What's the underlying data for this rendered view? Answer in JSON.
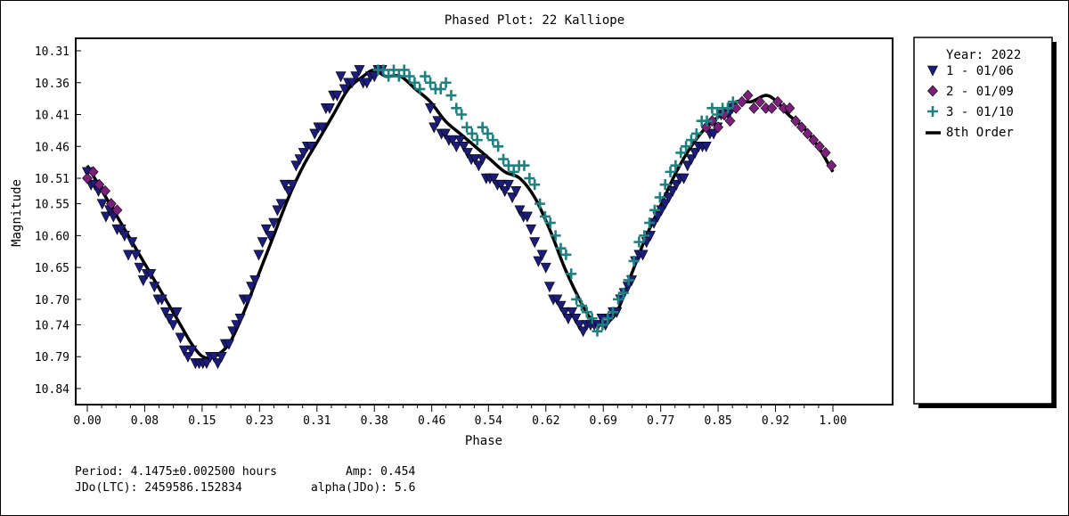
{
  "chart_data": {
    "type": "scatter",
    "title": "Phased Plot: 22 Kalliope",
    "xlabel": "Phase",
    "ylabel": "Magnitude",
    "xlim": [
      -0.01,
      1.09
    ],
    "ylim": [
      10.31,
      10.84
    ],
    "y_inverted": true,
    "grid": false,
    "xticks": [
      "0.00",
      "0.08",
      "0.15",
      "0.23",
      "0.31",
      "0.38",
      "0.46",
      "0.54",
      "0.62",
      "0.69",
      "0.77",
      "0.85",
      "0.92",
      "1.00"
    ],
    "xtick_values": [
      0.0,
      0.077,
      0.154,
      0.231,
      0.308,
      0.385,
      0.462,
      0.538,
      0.615,
      0.692,
      0.769,
      0.846,
      0.923,
      1.0
    ],
    "yticks": [
      "10.31",
      "10.36",
      "10.41",
      "10.46",
      "10.51",
      "10.55",
      "10.60",
      "10.65",
      "10.70",
      "10.74",
      "10.79",
      "10.84"
    ],
    "ytick_values": [
      10.31,
      10.36,
      10.41,
      10.46,
      10.51,
      10.55,
      10.6,
      10.65,
      10.7,
      10.74,
      10.79,
      10.84
    ],
    "legend": {
      "title": "Year: 2022",
      "placement": "right",
      "entries": [
        "1 - 01/06",
        "2 - 01/09",
        "3 - 01/10",
        "8th Order"
      ]
    },
    "series": [
      {
        "name": "1 - 01/06",
        "marker": "triangle-down",
        "color": "#1c1c7a",
        "x": [
          0.0,
          0.005,
          0.01,
          0.015,
          0.02,
          0.025,
          0.03,
          0.035,
          0.04,
          0.045,
          0.05,
          0.055,
          0.06,
          0.065,
          0.07,
          0.075,
          0.08,
          0.085,
          0.09,
          0.095,
          0.1,
          0.105,
          0.11,
          0.115,
          0.12,
          0.125,
          0.13,
          0.135,
          0.14,
          0.145,
          0.15,
          0.155,
          0.16,
          0.165,
          0.17,
          0.175,
          0.18,
          0.185,
          0.19,
          0.195,
          0.2,
          0.205,
          0.21,
          0.215,
          0.22,
          0.225,
          0.23,
          0.235,
          0.24,
          0.245,
          0.25,
          0.255,
          0.26,
          0.265,
          0.27,
          0.275,
          0.28,
          0.285,
          0.29,
          0.295,
          0.3,
          0.305,
          0.31,
          0.315,
          0.32,
          0.325,
          0.33,
          0.335,
          0.34,
          0.345,
          0.35,
          0.355,
          0.36,
          0.365,
          0.37,
          0.375,
          0.38,
          0.385,
          0.39,
          0.395,
          0.46,
          0.465,
          0.47,
          0.475,
          0.48,
          0.485,
          0.49,
          0.495,
          0.5,
          0.505,
          0.51,
          0.515,
          0.52,
          0.525,
          0.53,
          0.535,
          0.54,
          0.545,
          0.55,
          0.555,
          0.56,
          0.565,
          0.57,
          0.575,
          0.58,
          0.585,
          0.59,
          0.595,
          0.6,
          0.605,
          0.61,
          0.615,
          0.62,
          0.625,
          0.63,
          0.635,
          0.64,
          0.645,
          0.65,
          0.655,
          0.66,
          0.665,
          0.67,
          0.675,
          0.68,
          0.685,
          0.69,
          0.695,
          0.7,
          0.705,
          0.71,
          0.715,
          0.72,
          0.725,
          0.73,
          0.735,
          0.74,
          0.745,
          0.75,
          0.755,
          0.76,
          0.765,
          0.77,
          0.775,
          0.78,
          0.785,
          0.79,
          0.795,
          0.8,
          0.805,
          0.81,
          0.815,
          0.82,
          0.825,
          0.83,
          0.835,
          0.84,
          0.845,
          0.85,
          0.855,
          0.86,
          0.865
        ],
        "y": [
          10.5,
          10.52,
          10.52,
          10.53,
          10.55,
          10.57,
          10.56,
          10.57,
          10.59,
          10.59,
          10.6,
          10.63,
          10.61,
          10.63,
          10.65,
          10.67,
          10.66,
          10.66,
          10.68,
          10.7,
          10.7,
          10.72,
          10.73,
          10.74,
          10.72,
          10.76,
          10.78,
          10.79,
          10.78,
          10.8,
          10.8,
          10.8,
          10.8,
          10.79,
          10.79,
          10.8,
          10.79,
          10.77,
          10.77,
          10.75,
          10.74,
          10.73,
          10.7,
          10.7,
          10.68,
          10.67,
          10.63,
          10.61,
          10.59,
          10.6,
          10.58,
          10.56,
          10.55,
          10.52,
          10.53,
          10.52,
          10.49,
          10.48,
          10.47,
          10.46,
          10.46,
          10.44,
          10.43,
          10.43,
          10.4,
          10.4,
          10.38,
          10.38,
          10.35,
          10.37,
          10.36,
          10.36,
          10.35,
          10.34,
          10.36,
          10.36,
          10.35,
          10.35,
          10.34,
          10.34,
          10.4,
          10.43,
          10.42,
          10.44,
          10.44,
          10.45,
          10.45,
          10.46,
          10.45,
          10.46,
          10.47,
          10.48,
          10.48,
          10.49,
          10.48,
          10.51,
          10.51,
          10.51,
          10.52,
          10.52,
          10.53,
          10.52,
          10.54,
          10.53,
          10.56,
          10.57,
          10.57,
          10.59,
          10.61,
          10.64,
          10.63,
          10.65,
          10.68,
          10.7,
          10.7,
          10.71,
          10.72,
          10.73,
          10.72,
          10.73,
          10.74,
          10.75,
          10.74,
          10.74,
          10.74,
          10.74,
          10.73,
          10.74,
          10.73,
          10.72,
          10.72,
          10.7,
          10.69,
          10.68,
          10.67,
          10.64,
          10.63,
          10.63,
          10.61,
          10.6,
          10.58,
          10.57,
          10.56,
          10.55,
          10.54,
          10.53,
          10.52,
          10.51,
          10.51,
          10.49,
          10.48,
          10.47,
          10.46,
          10.46,
          10.46,
          10.44,
          10.44,
          10.43,
          10.41,
          10.41,
          10.41,
          10.4
        ]
      },
      {
        "name": "2 - 01/09",
        "marker": "diamond",
        "color": "#7a1f7a",
        "x": [
          0.0,
          0.008,
          0.016,
          0.024,
          0.032,
          0.04,
          0.83,
          0.838,
          0.846,
          0.854,
          0.862,
          0.87,
          0.878,
          0.886,
          0.894,
          0.902,
          0.91,
          0.918,
          0.926,
          0.934,
          0.942,
          0.95,
          0.958,
          0.966,
          0.974,
          0.982,
          0.99,
          0.998
        ],
        "y": [
          10.51,
          10.5,
          10.52,
          10.53,
          10.55,
          10.56,
          10.43,
          10.42,
          10.43,
          10.41,
          10.42,
          10.4,
          10.39,
          10.38,
          10.4,
          10.39,
          10.4,
          10.4,
          10.39,
          10.4,
          10.4,
          10.42,
          10.43,
          10.44,
          10.45,
          10.46,
          10.47,
          10.49
        ]
      },
      {
        "name": "3 - 01/10",
        "marker": "plus",
        "color": "#1f8080",
        "x": [
          0.39,
          0.397,
          0.404,
          0.411,
          0.418,
          0.425,
          0.432,
          0.439,
          0.446,
          0.453,
          0.46,
          0.467,
          0.474,
          0.481,
          0.488,
          0.495,
          0.502,
          0.509,
          0.516,
          0.523,
          0.53,
          0.537,
          0.544,
          0.551,
          0.558,
          0.565,
          0.572,
          0.579,
          0.586,
          0.593,
          0.6,
          0.607,
          0.614,
          0.621,
          0.628,
          0.635,
          0.642,
          0.649,
          0.656,
          0.663,
          0.67,
          0.677,
          0.684,
          0.691,
          0.698,
          0.705,
          0.712,
          0.719,
          0.726,
          0.733,
          0.74,
          0.747,
          0.754,
          0.761,
          0.768,
          0.775,
          0.782,
          0.789,
          0.796,
          0.803,
          0.81,
          0.817,
          0.824,
          0.831,
          0.838,
          0.845,
          0.852,
          0.859,
          0.866
        ],
        "y": [
          10.34,
          10.34,
          10.35,
          10.34,
          10.35,
          10.34,
          10.35,
          10.36,
          10.37,
          10.35,
          10.36,
          10.37,
          10.37,
          10.36,
          10.38,
          10.4,
          10.41,
          10.43,
          10.44,
          10.45,
          10.43,
          10.44,
          10.45,
          10.46,
          10.48,
          10.49,
          10.5,
          10.49,
          10.49,
          10.51,
          10.52,
          10.55,
          10.57,
          10.58,
          10.6,
          10.62,
          10.63,
          10.66,
          10.7,
          10.71,
          10.72,
          10.73,
          10.75,
          10.74,
          10.73,
          10.72,
          10.7,
          10.69,
          10.67,
          10.64,
          10.61,
          10.6,
          10.58,
          10.56,
          10.54,
          10.52,
          10.5,
          10.49,
          10.47,
          10.46,
          10.45,
          10.44,
          10.42,
          10.42,
          10.4,
          10.41,
          10.4,
          10.4,
          10.39
        ]
      },
      {
        "name": "8th Order",
        "type": "line",
        "color": "#000000",
        "x": [
          0.0,
          0.02,
          0.04,
          0.06,
          0.08,
          0.1,
          0.12,
          0.14,
          0.155,
          0.17,
          0.19,
          0.21,
          0.23,
          0.25,
          0.27,
          0.29,
          0.31,
          0.33,
          0.35,
          0.37,
          0.385,
          0.4,
          0.42,
          0.44,
          0.46,
          0.48,
          0.5,
          0.52,
          0.54,
          0.56,
          0.58,
          0.6,
          0.62,
          0.64,
          0.66,
          0.675,
          0.69,
          0.71,
          0.73,
          0.75,
          0.77,
          0.79,
          0.81,
          0.83,
          0.85,
          0.87,
          0.89,
          0.91,
          0.925,
          0.94,
          0.96,
          0.98,
          1.0
        ],
        "y": [
          10.49,
          10.53,
          10.57,
          10.61,
          10.65,
          10.69,
          10.73,
          10.77,
          10.79,
          10.79,
          10.77,
          10.72,
          10.66,
          10.6,
          10.54,
          10.49,
          10.45,
          10.41,
          10.37,
          10.35,
          10.34,
          10.35,
          10.35,
          10.37,
          10.39,
          10.42,
          10.44,
          10.46,
          10.48,
          10.5,
          10.51,
          10.54,
          10.59,
          10.65,
          10.7,
          10.73,
          10.74,
          10.72,
          10.66,
          10.6,
          10.55,
          10.5,
          10.46,
          10.43,
          10.41,
          10.39,
          10.39,
          10.38,
          10.39,
          10.41,
          10.43,
          10.46,
          10.5
        ]
      }
    ]
  },
  "footer": {
    "period": "Period: 4.1475±0.002500 hours",
    "amp": "Amp: 0.454",
    "jdo": "JDo(LTC): 2459586.152834",
    "alpha": "alpha(JDo): 5.6"
  }
}
